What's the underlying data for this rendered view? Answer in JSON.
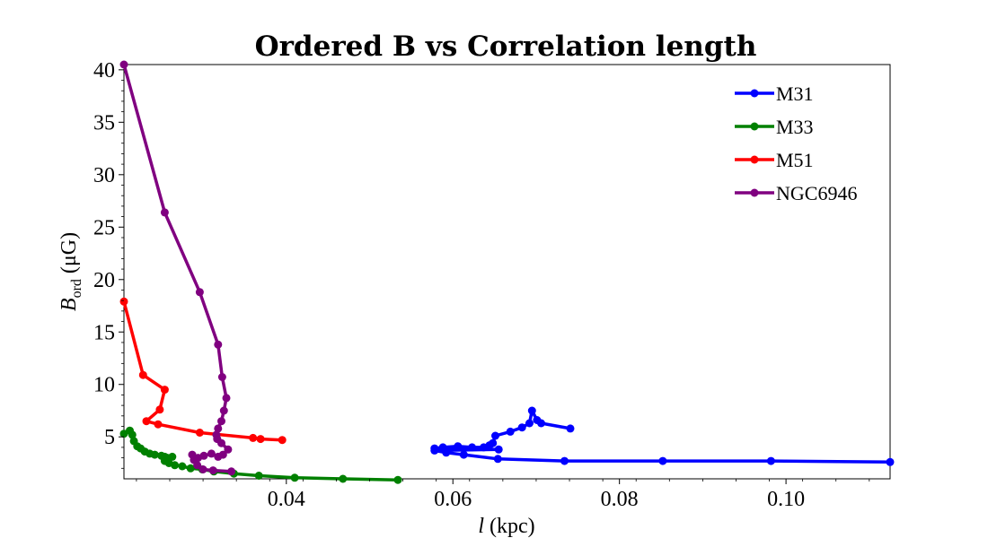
{
  "chart_data": {
    "type": "line",
    "title": "Ordered B vs Correlation length",
    "xlabel": {
      "var": "l",
      "unit": " (kpc)"
    },
    "ylabel": {
      "var": "B",
      "sub": "ord",
      "unit": " (μG)"
    },
    "xlim": [
      0.0205,
      0.1125
    ],
    "ylim": [
      1.0,
      40.5
    ],
    "xticks": [
      0.04,
      0.06,
      0.08,
      0.1
    ],
    "xtick_labels": [
      "0.04",
      "0.06",
      "0.08",
      "0.10"
    ],
    "yticks": [
      5,
      10,
      15,
      20,
      25,
      30,
      35,
      40
    ],
    "ytick_labels": [
      "5",
      "10",
      "15",
      "20",
      "25",
      "30",
      "35",
      "40"
    ],
    "grid": false,
    "legend_position": "top-right",
    "series": [
      {
        "name": "M31",
        "color": "#0000ff",
        "points": [
          [
            0.0741,
            5.8
          ],
          [
            0.0706,
            6.3
          ],
          [
            0.0701,
            6.6
          ],
          [
            0.0695,
            7.5
          ],
          [
            0.0692,
            6.3
          ],
          [
            0.0683,
            5.9
          ],
          [
            0.0669,
            5.5
          ],
          [
            0.0651,
            5.1
          ],
          [
            0.0648,
            4.4
          ],
          [
            0.0644,
            4.2
          ],
          [
            0.0637,
            4.0
          ],
          [
            0.0623,
            4.0
          ],
          [
            0.0606,
            4.1
          ],
          [
            0.0588,
            4.0
          ],
          [
            0.0578,
            3.9
          ],
          [
            0.0655,
            3.8
          ],
          [
            0.0578,
            3.7
          ],
          [
            0.0592,
            3.5
          ],
          [
            0.0613,
            3.3
          ],
          [
            0.0654,
            2.9
          ],
          [
            0.0734,
            2.7
          ],
          [
            0.0852,
            2.7
          ],
          [
            0.0982,
            2.7
          ],
          [
            0.1125,
            2.6
          ]
        ]
      },
      {
        "name": "M33",
        "color": "#008000",
        "points": [
          [
            0.0205,
            5.3
          ],
          [
            0.0212,
            5.6
          ],
          [
            0.0215,
            5.2
          ],
          [
            0.0217,
            4.6
          ],
          [
            0.0221,
            4.1
          ],
          [
            0.0225,
            3.9
          ],
          [
            0.023,
            3.6
          ],
          [
            0.0236,
            3.4
          ],
          [
            0.0242,
            3.3
          ],
          [
            0.025,
            3.2
          ],
          [
            0.0254,
            3.1
          ],
          [
            0.0257,
            3.0
          ],
          [
            0.0263,
            3.1
          ],
          [
            0.0258,
            2.9
          ],
          [
            0.0254,
            2.7
          ],
          [
            0.0259,
            2.5
          ],
          [
            0.0266,
            2.3
          ],
          [
            0.0275,
            2.2
          ],
          [
            0.0285,
            2.0
          ],
          [
            0.0299,
            1.9
          ],
          [
            0.0313,
            1.7
          ],
          [
            0.0337,
            1.5
          ],
          [
            0.0367,
            1.3
          ],
          [
            0.041,
            1.1
          ],
          [
            0.0468,
            1.0
          ],
          [
            0.0534,
            0.9
          ]
        ]
      },
      {
        "name": "M51",
        "color": "#ff0000",
        "points": [
          [
            0.0205,
            17.9
          ],
          [
            0.0228,
            10.9
          ],
          [
            0.0254,
            9.5
          ],
          [
            0.0248,
            7.6
          ],
          [
            0.0232,
            6.5
          ],
          [
            0.0246,
            6.2
          ],
          [
            0.0296,
            5.4
          ],
          [
            0.036,
            4.9
          ],
          [
            0.0369,
            4.8
          ],
          [
            0.0395,
            4.7
          ]
        ]
      },
      {
        "name": "NGC6946",
        "color": "#800080",
        "points": [
          [
            0.0205,
            40.5
          ],
          [
            0.0254,
            26.4
          ],
          [
            0.0296,
            18.8
          ],
          [
            0.0318,
            13.8
          ],
          [
            0.0323,
            10.7
          ],
          [
            0.0328,
            8.7
          ],
          [
            0.0325,
            7.5
          ],
          [
            0.0322,
            6.5
          ],
          [
            0.0318,
            5.8
          ],
          [
            0.0316,
            5.2
          ],
          [
            0.0317,
            4.8
          ],
          [
            0.0322,
            4.4
          ],
          [
            0.033,
            3.8
          ],
          [
            0.0324,
            3.3
          ],
          [
            0.0318,
            3.1
          ],
          [
            0.031,
            3.4
          ],
          [
            0.0301,
            3.2
          ],
          [
            0.0294,
            3.0
          ],
          [
            0.0287,
            3.3
          ],
          [
            0.0289,
            2.8
          ],
          [
            0.0293,
            2.3
          ],
          [
            0.03,
            1.9
          ],
          [
            0.0312,
            1.8
          ],
          [
            0.0334,
            1.7
          ]
        ]
      }
    ]
  }
}
